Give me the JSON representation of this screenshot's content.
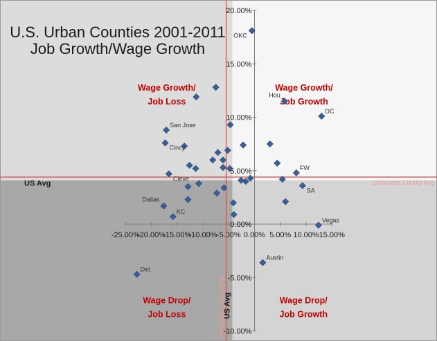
{
  "chart_data": {
    "type": "scatter",
    "title_lines": [
      "U.S. Urban Counties 2001-2011",
      "Job Growth/Wage Growth"
    ],
    "xlabel": "",
    "ylabel": "",
    "xlim": [
      -25,
      15
    ],
    "ylim": [
      -10,
      20
    ],
    "x_ticks": [
      -25,
      -20,
      -15,
      -10,
      -5,
      0,
      5,
      10,
      15
    ],
    "y_ticks": [
      -10,
      -5,
      0,
      5,
      10,
      15,
      20
    ],
    "x_tick_labels": [
      "-25.00%",
      "-20.00%",
      "-15.00%",
      "-10.00%",
      "-5.00%",
      "0.00%",
      "5.00%",
      "10.00%",
      "15.00%"
    ],
    "y_tick_labels": [
      "-10.00%",
      "-5.00%",
      "0.00%",
      "5.00%",
      "10.00%",
      "15.00%",
      "20.00%"
    ],
    "grid": false,
    "us_avg": {
      "x": -4.3,
      "y": 4.1,
      "label_h": "US Avg",
      "label_v": "US Avg"
    },
    "urban_avg": {
      "x": -5.5,
      "y": 4.4,
      "label_h": "Urbanized County Avg",
      "label_v": "Urbanized County Avg"
    },
    "quadrant_labels": [
      {
        "id": "wage-growth-job-loss",
        "lines": [
          "Wage Growth/",
          "Job Loss"
        ],
        "x": -17,
        "y": 12.5
      },
      {
        "id": "wage-growth-job-growth",
        "lines": [
          "Wage Growth/",
          "Job Growth"
        ],
        "x": 9.6,
        "y": 12.5
      },
      {
        "id": "wage-drop-job-loss",
        "lines": [
          "Wage Drop/",
          "Job Loss"
        ],
        "x": -17,
        "y": -7.4
      },
      {
        "id": "wage-drop-job-growth",
        "lines": [
          "Wage Drop/",
          "Job Growth"
        ],
        "x": 9.5,
        "y": -7.4
      }
    ],
    "points": [
      {
        "x": -0.5,
        "y": 18.1,
        "label": "OKC",
        "label_pos": "left"
      },
      {
        "x": -7.5,
        "y": 12.8,
        "label": ""
      },
      {
        "x": -11.3,
        "y": 11.9,
        "label": ""
      },
      {
        "x": 5.8,
        "y": 11.5,
        "label": "Hou",
        "label_pos": "upper-left"
      },
      {
        "x": 13.0,
        "y": 10.1,
        "label": "DC",
        "label_pos": "upper-right"
      },
      {
        "x": -4.7,
        "y": 9.3,
        "label": ""
      },
      {
        "x": -17.1,
        "y": 8.8,
        "label": "San Jose",
        "label_pos": "upper-right"
      },
      {
        "x": -17.3,
        "y": 7.6,
        "label": "Cincy",
        "label_pos": "lower-right"
      },
      {
        "x": 3.0,
        "y": 7.5,
        "label": ""
      },
      {
        "x": -13.6,
        "y": 7.3,
        "label": ""
      },
      {
        "x": -2.2,
        "y": 7.4,
        "label": ""
      },
      {
        "x": -5.2,
        "y": 6.9,
        "label": ""
      },
      {
        "x": -7.1,
        "y": 6.7,
        "label": ""
      },
      {
        "x": -6.1,
        "y": 6.0,
        "label": ""
      },
      {
        "x": -8.1,
        "y": 6.0,
        "label": ""
      },
      {
        "x": 4.4,
        "y": 5.7,
        "label": ""
      },
      {
        "x": -12.6,
        "y": 5.5,
        "label": ""
      },
      {
        "x": -11.4,
        "y": 5.2,
        "label": ""
      },
      {
        "x": -6.1,
        "y": 5.3,
        "label": ""
      },
      {
        "x": -4.8,
        "y": 5.2,
        "label": ""
      },
      {
        "x": 8.1,
        "y": 4.8,
        "label": "FW",
        "label_pos": "upper-right"
      },
      {
        "x": -16.6,
        "y": 4.7,
        "label": "Cleve",
        "label_pos": "lower-right"
      },
      {
        "x": -0.8,
        "y": 4.3,
        "label": ""
      },
      {
        "x": -2.6,
        "y": 4.1,
        "label": ""
      },
      {
        "x": -1.7,
        "y": 4.0,
        "label": ""
      },
      {
        "x": 5.4,
        "y": 4.2,
        "label": ""
      },
      {
        "x": -10.8,
        "y": 3.8,
        "label": ""
      },
      {
        "x": -12.9,
        "y": 3.5,
        "label": ""
      },
      {
        "x": -5.9,
        "y": 3.4,
        "label": ""
      },
      {
        "x": 9.3,
        "y": 3.6,
        "label": "SA",
        "label_pos": "lower-right"
      },
      {
        "x": -7.3,
        "y": 2.9,
        "label": ""
      },
      {
        "x": -12.9,
        "y": 2.3,
        "label": ""
      },
      {
        "x": -4.1,
        "y": 2.0,
        "label": ""
      },
      {
        "x": 6.0,
        "y": 2.1,
        "label": ""
      },
      {
        "x": -17.6,
        "y": 1.7,
        "label": "Dallas",
        "label_pos": "upper-left"
      },
      {
        "x": -4.0,
        "y": 0.9,
        "label": ""
      },
      {
        "x": -15.8,
        "y": 0.7,
        "label": "KC",
        "label_pos": "upper-right"
      },
      {
        "x": 12.4,
        "y": -0.1,
        "label": "Vegas",
        "label_pos": "upper-right"
      },
      {
        "x": 1.6,
        "y": -3.6,
        "label": "Austin",
        "label_pos": "upper-right"
      },
      {
        "x": -22.8,
        "y": -4.7,
        "label": "Det",
        "label_pos": "upper-right"
      }
    ],
    "colors": {
      "marker": "#3a5f94",
      "marker_stroke": "#2d4c78",
      "quadrant_label": "#c00000",
      "avg_line": "#d9473f",
      "avg_line_soft": "#e99a96",
      "quad_upper_left": "#dcdcdc",
      "quad_upper_right": "#f6f6f6",
      "quad_lower_left": "#a8a8a8",
      "quad_lower_right": "#d4d4d4",
      "text": "#1a1a1a"
    }
  }
}
